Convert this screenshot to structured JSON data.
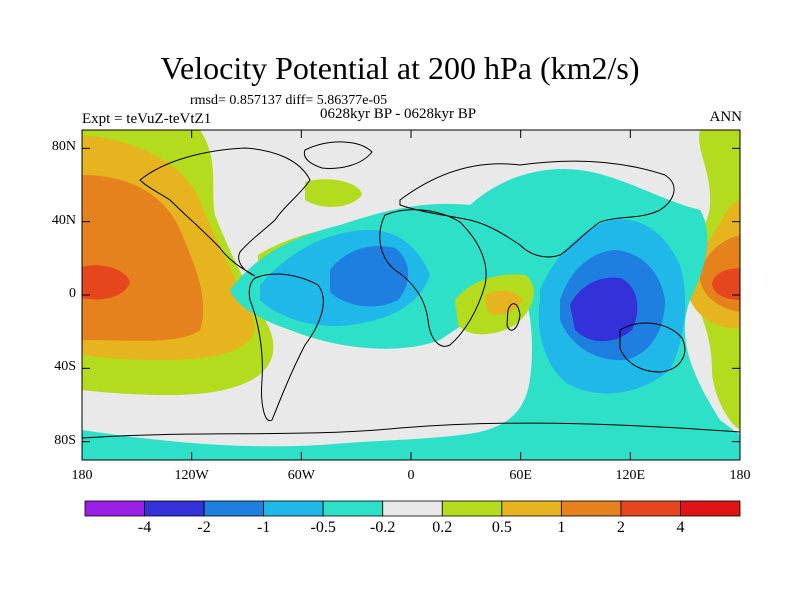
{
  "title": "Velocity Potential at 200 hPa (km2/s)",
  "stats_line": "rmsd= 0.857137 diff= 5.86377e-05",
  "experiment": "Expt = teVuZ-teVtZ1",
  "period": "0628kyr BP - 0628kyr BP",
  "season": "ANN",
  "axes": {
    "lat_ticks": [
      {
        "value": 80,
        "label": "80N"
      },
      {
        "value": 40,
        "label": "40N"
      },
      {
        "value": 0,
        "label": "0"
      },
      {
        "value": -40,
        "label": "40S"
      },
      {
        "value": -80,
        "label": "80S"
      }
    ],
    "lon_ticks": [
      {
        "value": -180,
        "label": "180"
      },
      {
        "value": -120,
        "label": "120W"
      },
      {
        "value": -60,
        "label": "60W"
      },
      {
        "value": 0,
        "label": "0"
      },
      {
        "value": 60,
        "label": "60E"
      },
      {
        "value": 120,
        "label": "120E"
      },
      {
        "value": 180,
        "label": "180"
      }
    ],
    "lat_range": [
      -90,
      90
    ],
    "lon_range": [
      -180,
      180
    ]
  },
  "colorbar": {
    "colors": [
      "#9a1ee6",
      "#3232d8",
      "#1e7fe0",
      "#1fb8e8",
      "#2ee0c8",
      "#e9e9e9",
      "#b4dc1e",
      "#e6b41e",
      "#e6821e",
      "#e6461e",
      "#e01414"
    ],
    "labels": [
      "-4",
      "-2",
      "-1",
      "-0.5",
      "-0.2",
      "0.2",
      "0.5",
      "1",
      "2",
      "4"
    ]
  },
  "chart_data": {
    "type": "heatmap",
    "variable": "Velocity Potential at 200 hPa",
    "units": "km2/s",
    "levels": [
      -4,
      -2,
      -1,
      -0.5,
      -0.2,
      0.2,
      0.5,
      1,
      2,
      4
    ],
    "anomaly_centers": [
      {
        "lon": -170,
        "lat": 8,
        "value": 3
      },
      {
        "lon": 170,
        "lat": 8,
        "value": 3
      },
      {
        "lon": 105,
        "lat": -10,
        "value": -2.5
      },
      {
        "lon": -20,
        "lat": 5,
        "value": -1.5
      },
      {
        "lon": 50,
        "lat": -5,
        "value": 1.2
      }
    ]
  }
}
